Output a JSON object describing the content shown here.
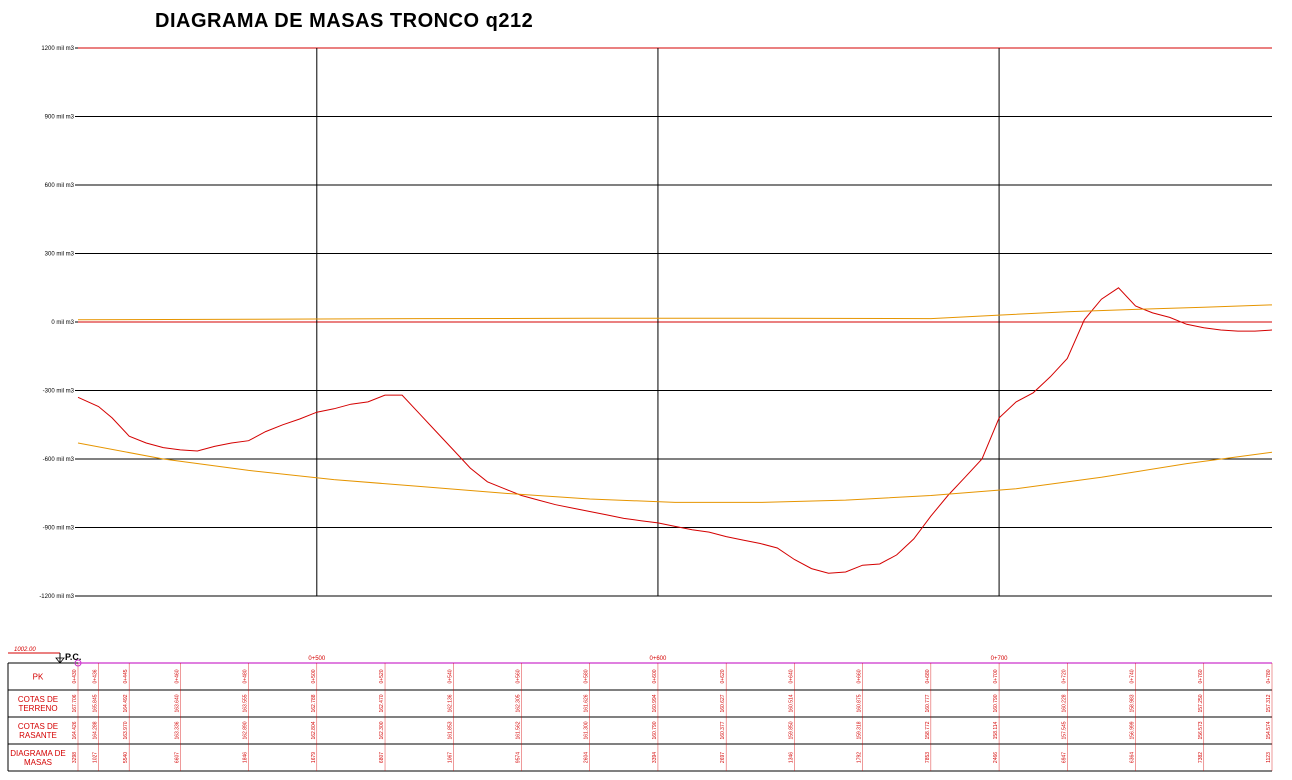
{
  "chart_data": {
    "type": "line",
    "title": "DIAGRAMA DE MASAS TRONCO q212",
    "y_tick_labels": [
      "1200 mil m3",
      "900 mil m3",
      "600 mil m3",
      "300 mil m3",
      "0 mil m3",
      "-300 mil m3",
      "-600 mil m3",
      "-900 mil m3",
      "-1200 mil m3"
    ],
    "y_tick_values": [
      1200,
      900,
      600,
      300,
      0,
      -300,
      -600,
      -900,
      -1200
    ],
    "ylim": [
      -1200,
      1200
    ],
    "x_major_labels": [
      "0+500",
      "0+600",
      "0+700"
    ],
    "x_major_values": [
      500,
      600,
      700
    ],
    "xlim": [
      430,
      780
    ],
    "grid": true,
    "series": [
      {
        "color": "#d40000",
        "x": [
          430,
          436,
          440,
          445,
          450,
          455,
          460,
          465,
          470,
          475,
          480,
          485,
          490,
          495,
          500,
          505,
          510,
          515,
          520,
          525,
          530,
          535,
          540,
          545,
          550,
          555,
          560,
          565,
          570,
          575,
          580,
          585,
          590,
          595,
          600,
          605,
          610,
          615,
          620,
          625,
          630,
          635,
          640,
          645,
          650,
          655,
          660,
          665,
          670,
          675,
          680,
          685,
          690,
          695,
          700,
          705,
          710,
          715,
          720,
          725,
          730,
          735,
          740,
          745,
          750,
          755,
          760,
          765,
          770,
          775,
          780
        ],
        "y": [
          -330,
          -370,
          -420,
          -500,
          -530,
          -550,
          -560,
          -565,
          -545,
          -530,
          -520,
          -480,
          -450,
          -425,
          -395,
          -380,
          -360,
          -350,
          -320,
          -320,
          -400,
          -480,
          -560,
          -640,
          -700,
          -730,
          -760,
          -780,
          -800,
          -815,
          -830,
          -845,
          -860,
          -870,
          -880,
          -895,
          -910,
          -920,
          -940,
          -955,
          -970,
          -990,
          -1040,
          -1080,
          -1100,
          -1095,
          -1065,
          -1060,
          -1020,
          -950,
          -850,
          -760,
          -680,
          -600,
          -420,
          -350,
          -310,
          -240,
          -160,
          10,
          100,
          150,
          70,
          40,
          20,
          -10,
          -25,
          -35,
          -40,
          -40,
          -35
        ]
      },
      {
        "color": "#e69500",
        "x": [
          430,
          455,
          480,
          505,
          530,
          555,
          580,
          605,
          630,
          655,
          680,
          705,
          730,
          755,
          780
        ],
        "y": [
          -530,
          -600,
          -650,
          -690,
          -720,
          -750,
          -775,
          -790,
          -790,
          -780,
          -760,
          -730,
          -680,
          -620,
          -570
        ]
      },
      {
        "color": "#e69500",
        "x": [
          430,
          480,
          530,
          580,
          630,
          680,
          700,
          720,
          740,
          760,
          780
        ],
        "y": [
          10,
          12,
          15,
          16,
          16,
          15,
          30,
          45,
          55,
          65,
          75
        ]
      }
    ],
    "baseline_label": "1002.00",
    "start_label": "P.C.",
    "band_rows": [
      "PK",
      "COTAS DE TERRENO",
      "COTAS DE RASANTE",
      "DIAGRAMA DE MASAS"
    ],
    "band_columns": [
      {
        "pk": "0+430",
        "terreno": "167.706",
        "rasante": "164.426",
        "masas": "3298"
      },
      {
        "pk": "0+436",
        "terreno": "165.845",
        "rasante": "164.288",
        "masas": "1027"
      },
      {
        "pk": "0+445",
        "terreno": "164.492",
        "rasante": "163.970",
        "masas": "5540"
      },
      {
        "pk": "0+460",
        "terreno": "163.640",
        "rasante": "163.336",
        "masas": "6607"
      },
      {
        "pk": "0+480",
        "terreno": "163.555",
        "rasante": "162.890",
        "masas": "1846"
      },
      {
        "pk": "0+500",
        "terreno": "162.788",
        "rasante": "162.804",
        "masas": "1679"
      },
      {
        "pk": "0+520",
        "terreno": "162.470",
        "rasante": "162.300",
        "masas": "6807"
      },
      {
        "pk": "0+540",
        "terreno": "162.136",
        "rasante": "161.853",
        "masas": "1067"
      },
      {
        "pk": "0+560",
        "terreno": "162.305",
        "rasante": "161.562",
        "masas": "9574"
      },
      {
        "pk": "0+580",
        "terreno": "161.626",
        "rasante": "161.300",
        "masas": "2604"
      },
      {
        "pk": "0+600",
        "terreno": "160.994",
        "rasante": "160.790",
        "masas": "3394"
      },
      {
        "pk": "0+620",
        "terreno": "160.627",
        "rasante": "160.377",
        "masas": "2697"
      },
      {
        "pk": "0+640",
        "terreno": "160.514",
        "rasante": "159.850",
        "masas": "1346"
      },
      {
        "pk": "0+660",
        "terreno": "160.875",
        "rasante": "159.318",
        "masas": "1792"
      },
      {
        "pk": "0+680",
        "terreno": "160.777",
        "rasante": "158.772",
        "masas": "7853"
      },
      {
        "pk": "0+700",
        "terreno": "160.790",
        "rasante": "158.114",
        "masas": "2466"
      },
      {
        "pk": "0+720",
        "terreno": "160.228",
        "rasante": "157.545",
        "masas": "6947"
      },
      {
        "pk": "0+740",
        "terreno": "158.983",
        "rasante": "156.999",
        "masas": "6364"
      },
      {
        "pk": "0+760",
        "terreno": "157.250",
        "rasante": "156.573",
        "masas": "7382"
      },
      {
        "pk": "0+780",
        "terreno": "157.312",
        "rasante": "154.574",
        "masas": "1123"
      }
    ]
  }
}
